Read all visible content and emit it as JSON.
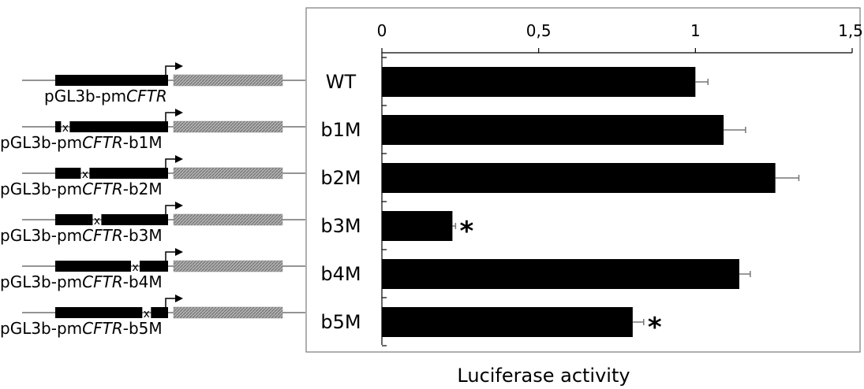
{
  "chart_data": {
    "type": "bar",
    "orientation": "horizontal",
    "xlabel": "Luciferase activity",
    "xlim": [
      0,
      1.5
    ],
    "ticks": [
      {
        "value": 0,
        "label": "0"
      },
      {
        "value": 0.5,
        "label": "0,5"
      },
      {
        "value": 1,
        "label": "1"
      },
      {
        "value": 1.5,
        "label": "1,5"
      }
    ],
    "grid": false,
    "categories": [
      "WT",
      "b1M",
      "b2M",
      "b3M",
      "b4M",
      "b5M"
    ],
    "values": [
      1.0,
      1.09,
      1.255,
      0.225,
      1.14,
      0.8
    ],
    "errors": [
      0.04,
      0.07,
      0.075,
      0.01,
      0.035,
      0.035
    ],
    "significance": [
      "",
      "",
      "",
      "*",
      "",
      "*"
    ],
    "bar_color": "#000000"
  },
  "constructs": [
    {
      "prefix": "pGL3b-pm",
      "gene": "CFTR",
      "suffix": "",
      "mutation_pos": null
    },
    {
      "prefix": "pGL3b-pm",
      "gene": "CFTR",
      "suffix": "-b1M",
      "mutation_pos": 0.09
    },
    {
      "prefix": "pGL3b-pm",
      "gene": "CFTR",
      "suffix": "-b2M",
      "mutation_pos": 0.265
    },
    {
      "prefix": "pGL3b-pm",
      "gene": "CFTR",
      "suffix": "-b3M",
      "mutation_pos": 0.37
    },
    {
      "prefix": "pGL3b-pm",
      "gene": "CFTR",
      "suffix": "-b4M",
      "mutation_pos": 0.71
    },
    {
      "prefix": "pGL3b-pm",
      "gene": "CFTR",
      "suffix": "-b5M",
      "mutation_pos": 0.81
    }
  ],
  "colors": {
    "promoter_block": "#000000",
    "luciferase_gene": "#a0a0a0",
    "backbone_line": "#555555",
    "chart_frame": "#7a7a7a"
  }
}
